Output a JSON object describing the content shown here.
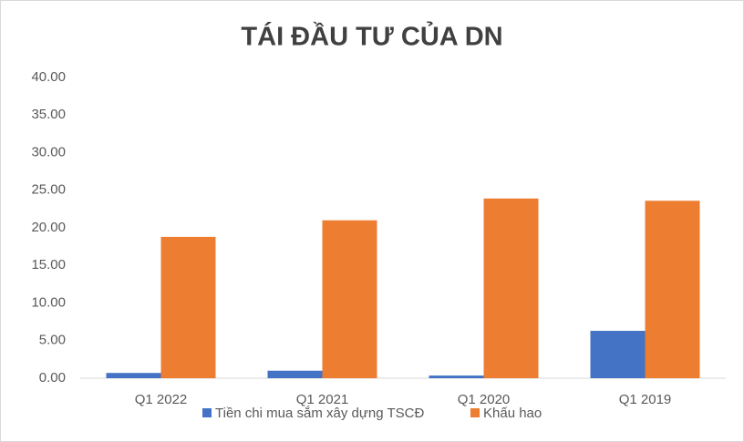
{
  "chart_data": {
    "type": "bar",
    "title": "TÁI ĐẦU TƯ CỦA DN",
    "categories": [
      "Q1 2022",
      "Q1 2021",
      "Q1 2020",
      "Q1 2019"
    ],
    "series": [
      {
        "name": "Tiền chi mua sắm xây dựng TSCĐ",
        "color": "#4472c4",
        "values": [
          0.7,
          1.0,
          0.35,
          6.3
        ]
      },
      {
        "name": "Khấu hao",
        "color": "#ed7d31",
        "values": [
          18.8,
          21.0,
          23.9,
          23.6
        ]
      }
    ],
    "ylim": [
      0,
      40
    ],
    "yticks": [
      {
        "value": 0,
        "label": "0.00"
      },
      {
        "value": 5,
        "label": "5.00"
      },
      {
        "value": 10,
        "label": "10.00"
      },
      {
        "value": 15,
        "label": "15.00"
      },
      {
        "value": 20,
        "label": "20.00"
      },
      {
        "value": 25,
        "label": "25.00"
      },
      {
        "value": 30,
        "label": "30.00"
      },
      {
        "value": 35,
        "label": "35.00"
      },
      {
        "value": 40,
        "label": "40.00"
      }
    ],
    "grid": false
  }
}
